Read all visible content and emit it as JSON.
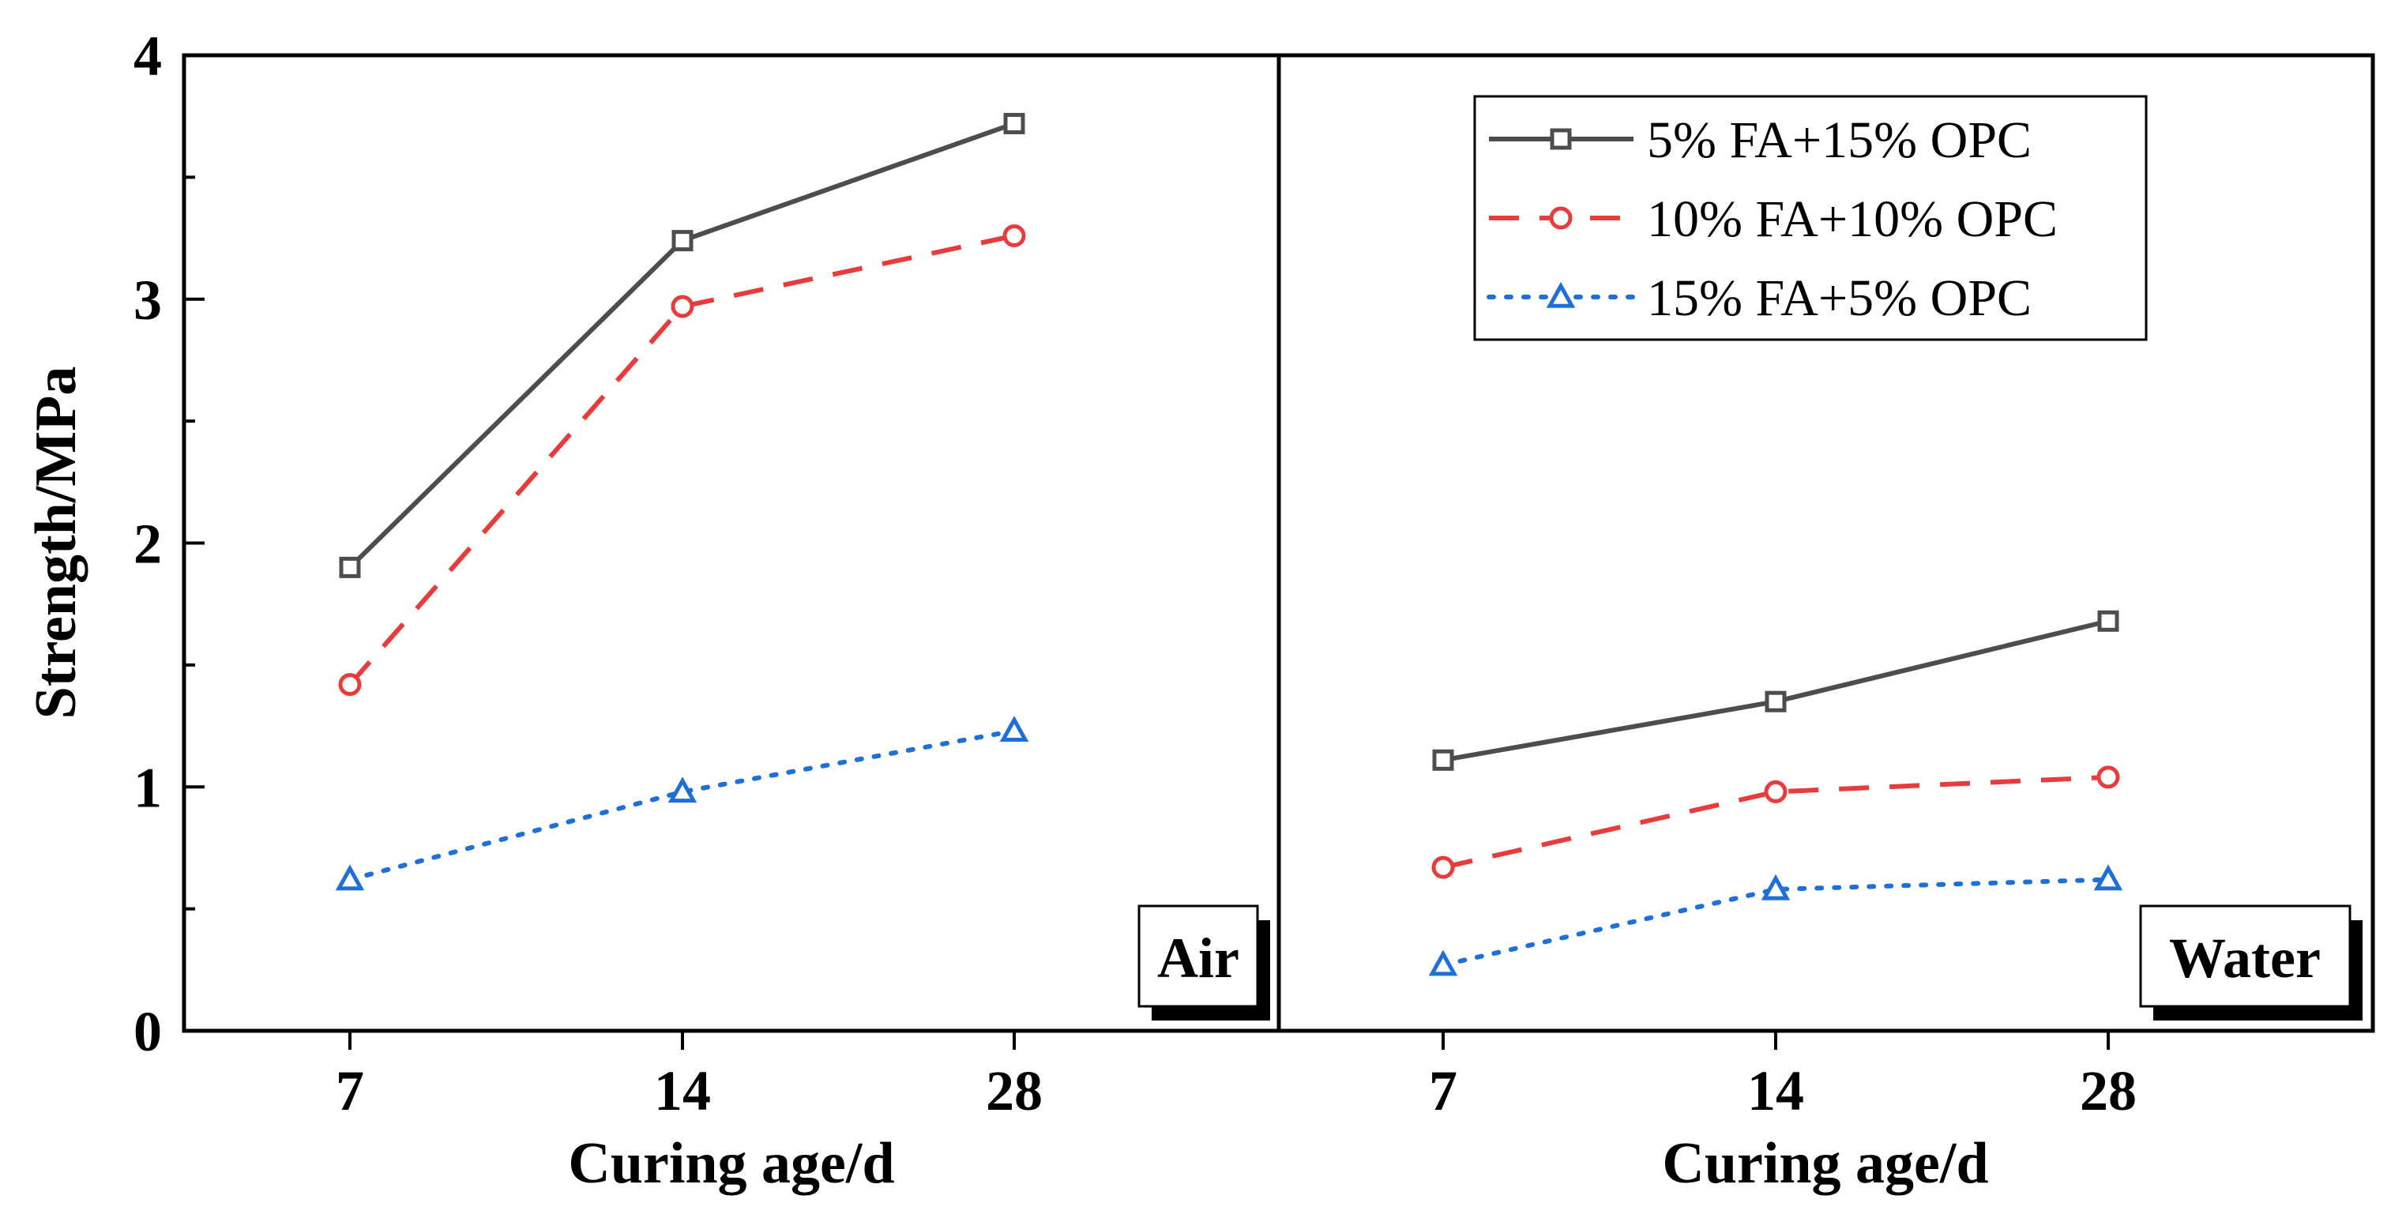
{
  "chart_data": {
    "type": "line",
    "ylabel": "Strength/MPa",
    "xlabel": "Curing age/d",
    "ylim": [
      0,
      4
    ],
    "yticks": [
      "0",
      "1",
      "2",
      "3",
      "4"
    ],
    "categories": [
      "7",
      "14",
      "28"
    ],
    "panels": [
      {
        "label": "Air",
        "series": [
          {
            "name": "5% FA+15% OPC",
            "color": "#4d4d4d",
            "marker": "square",
            "dash": "solid",
            "values": [
              1.9,
              3.24,
              3.72
            ]
          },
          {
            "name": "10% FA+10% OPC",
            "color": "#e83c3c",
            "marker": "circle",
            "dash": "dashed",
            "values": [
              1.42,
              2.97,
              3.26
            ]
          },
          {
            "name": "15% FA+5% OPC",
            "color": "#1f6fd8",
            "marker": "triangle",
            "dash": "dotted",
            "values": [
              0.62,
              0.98,
              1.23
            ]
          }
        ]
      },
      {
        "label": "Water",
        "series": [
          {
            "name": "5% FA+15% OPC",
            "color": "#4d4d4d",
            "marker": "square",
            "dash": "solid",
            "values": [
              1.11,
              1.35,
              1.68
            ]
          },
          {
            "name": "10% FA+10% OPC",
            "color": "#e83c3c",
            "marker": "circle",
            "dash": "dashed",
            "values": [
              0.67,
              0.98,
              1.04
            ]
          },
          {
            "name": "15% FA+5% OPC",
            "color": "#1f6fd8",
            "marker": "triangle",
            "dash": "dotted",
            "values": [
              0.27,
              0.58,
              0.62
            ]
          }
        ]
      }
    ],
    "legend": {
      "position": "top-right of Water panel",
      "entries": [
        "5% FA+15% OPC",
        "10% FA+10% OPC",
        "15% FA+5% OPC"
      ]
    }
  }
}
